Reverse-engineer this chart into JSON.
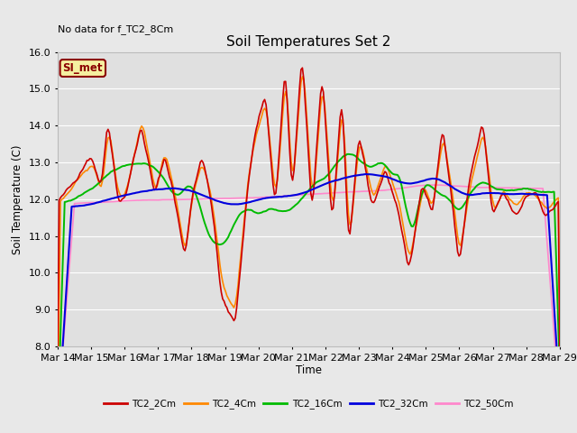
{
  "title": "Soil Temperatures Set 2",
  "xlabel": "Time",
  "ylabel": "Soil Temperature (C)",
  "ylim": [
    8.0,
    16.0
  ],
  "yticks": [
    8.0,
    9.0,
    10.0,
    11.0,
    12.0,
    13.0,
    14.0,
    15.0,
    16.0
  ],
  "annotation_top_left": "No data for f_TC2_8Cm",
  "legend_box_label": "SI_met",
  "background_color": "#e8e8e8",
  "plot_bg_color": "#e0e0e0",
  "grid_color": "#ffffff",
  "colors": {
    "TC2_2Cm": "#cc0000",
    "TC2_4Cm": "#ff8800",
    "TC2_16Cm": "#00bb00",
    "TC2_32Cm": "#0000dd",
    "TC2_50Cm": "#ff88cc"
  },
  "figsize": [
    6.4,
    4.8
  ],
  "dpi": 100
}
